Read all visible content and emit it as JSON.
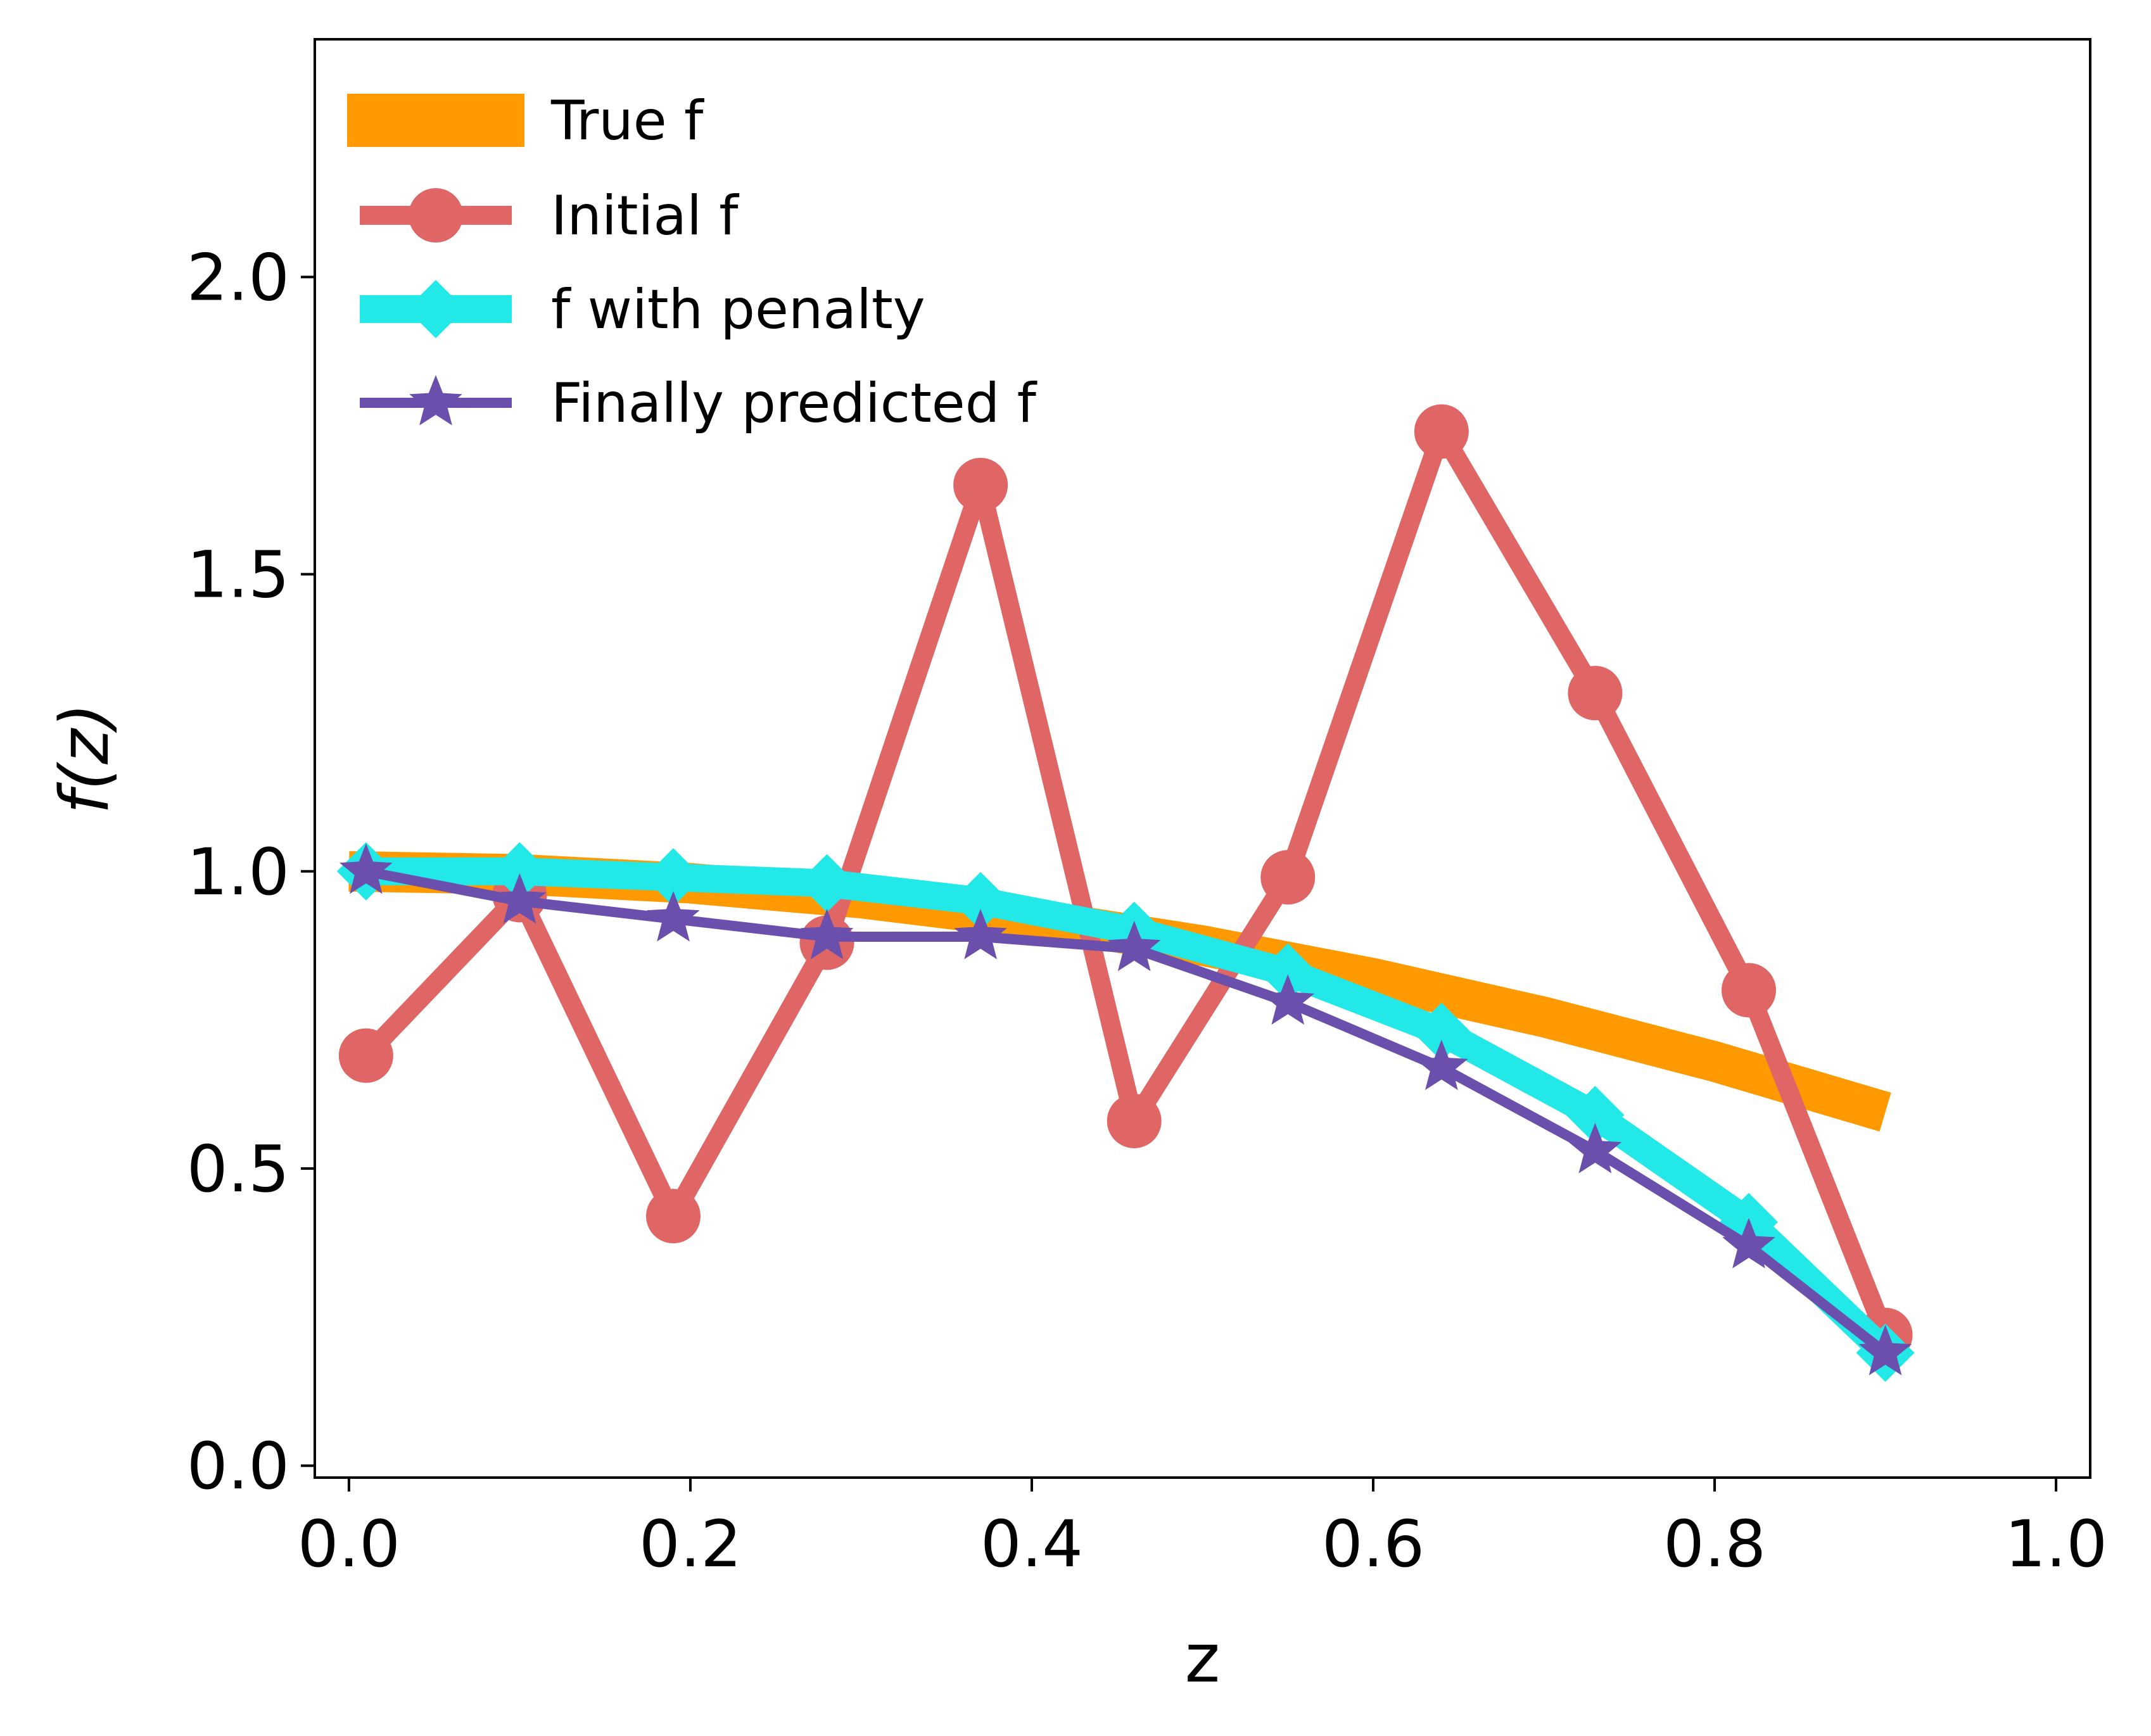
{
  "chart_data": {
    "type": "line",
    "title": "",
    "xlabel": "z",
    "ylabel": "f(z)",
    "xlim": [
      -0.02,
      1.02
    ],
    "ylim": [
      -0.02,
      2.4
    ],
    "xticks": [
      0.0,
      0.2,
      0.4,
      0.6,
      0.8,
      1.0
    ],
    "xtick_labels": [
      "0.0",
      "0.2",
      "0.4",
      "0.6",
      "0.8",
      "1.0"
    ],
    "yticks": [
      0.0,
      0.5,
      1.0,
      1.5,
      2.0
    ],
    "ytick_labels": [
      "0.0",
      "0.5",
      "1.0",
      "1.5",
      "2.0"
    ],
    "grid": false,
    "legend_position": "top-left",
    "series": [
      {
        "name": "True f",
        "color": "#ff9900",
        "marker": "none",
        "x": [
          0.0,
          0.1,
          0.2,
          0.3,
          0.4,
          0.5,
          0.6,
          0.7,
          0.8,
          0.9
        ],
        "y": [
          1.0,
          0.995,
          0.98,
          0.955,
          0.92,
          0.875,
          0.82,
          0.755,
          0.68,
          0.595
        ]
      },
      {
        "name": "Initial f",
        "color": "#e06666",
        "marker": "circle",
        "x": [
          0.01,
          0.1,
          0.19,
          0.28,
          0.37,
          0.46,
          0.55,
          0.64,
          0.73,
          0.82,
          0.9
        ],
        "y": [
          0.69,
          0.96,
          0.42,
          0.88,
          1.65,
          0.58,
          0.99,
          1.74,
          1.3,
          0.8,
          0.22
        ]
      },
      {
        "name": "f with penalty",
        "color": "#22e8e8",
        "marker": "diamond",
        "x": [
          0.01,
          0.1,
          0.19,
          0.28,
          0.37,
          0.46,
          0.55,
          0.64,
          0.73,
          0.82,
          0.9
        ],
        "y": [
          1.0,
          1.0,
          0.99,
          0.98,
          0.95,
          0.9,
          0.83,
          0.73,
          0.59,
          0.41,
          0.19
        ]
      },
      {
        "name": "Finally predicted f",
        "color": "#6a4fad",
        "marker": "star",
        "x": [
          0.01,
          0.1,
          0.19,
          0.28,
          0.37,
          0.46,
          0.55,
          0.64,
          0.73,
          0.82,
          0.9
        ],
        "y": [
          1.0,
          0.95,
          0.92,
          0.89,
          0.89,
          0.87,
          0.78,
          0.67,
          0.53,
          0.37,
          0.19
        ]
      }
    ]
  }
}
